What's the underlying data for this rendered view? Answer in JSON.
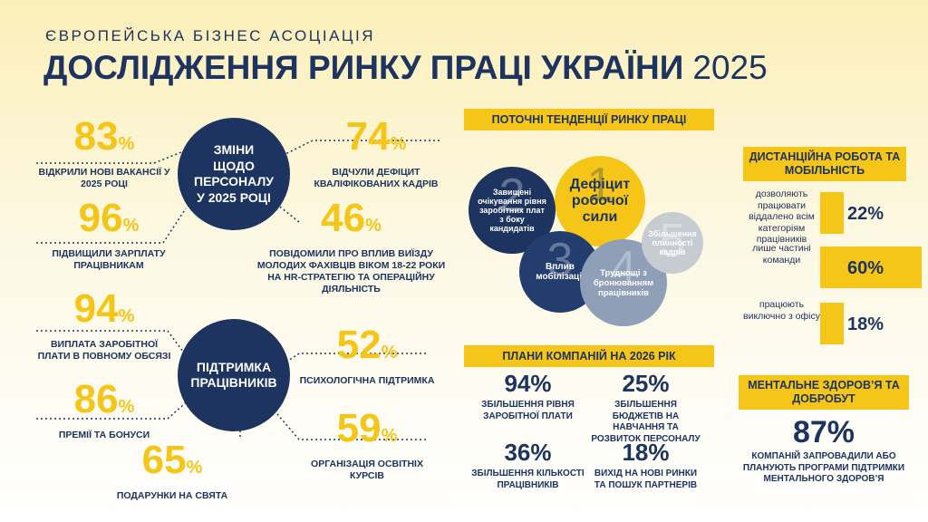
{
  "header": {
    "org": "ЄВРОПЕЙСЬКА БІЗНЕС АСОЦІАЦІЯ",
    "title": "ДОСЛІДЖЕННЯ РИНКУ ПРАЦІ УКРАЇНИ",
    "year": "2025"
  },
  "staffing": {
    "hub": "ЗМІНИ ЩОДО ПЕРСОНАЛУ У 2025 РОЦІ",
    "items": [
      {
        "value": "83",
        "unit": "%",
        "label": "ВІДКРИЛИ НОВІ ВАКАНСІЇ У 2025 РОЦІ"
      },
      {
        "value": "74",
        "unit": "%",
        "label": "ВІДЧУЛИ ДЕФІЦИТ КВАЛІФІКОВАНИХ КАДРІВ"
      },
      {
        "value": "96",
        "unit": "%",
        "label": "ПІДВИЩИЛИ ЗАРПЛАТУ ПРАЦІВНИКАМ"
      },
      {
        "value": "46",
        "unit": "%",
        "label": "ПОВІДОМИЛИ ПРО ВПЛИВ ВИЇЗДУ МОЛОДИХ ФАХІВЦІВ ВІКОМ 18-22 РОКИ НА HR-СТРАТЕГІЮ ТА ОПЕРАЦІЙНУ ДІЯЛЬНІСТЬ"
      }
    ]
  },
  "support": {
    "hub": "ПІДТРИМКА ПРАЦІВНИКІВ",
    "items": [
      {
        "value": "94",
        "unit": "%",
        "label": "ВИПЛАТА ЗАРОБІТНОЇ ПЛАТИ В ПОВНОМУ ОБСЯЗІ"
      },
      {
        "value": "52",
        "unit": "%",
        "label": "ПСИХОЛОГІЧНА ПІДТРИМКА"
      },
      {
        "value": "86",
        "unit": "%",
        "label": "ПРЕМІЇ ТА БОНУСИ"
      },
      {
        "value": "59",
        "unit": "%",
        "label": "ОРГАНІЗАЦІЯ ОСВІТНІХ КУРСІВ"
      },
      {
        "value": "65",
        "unit": "%",
        "label": "ПОДАРУНКИ НА СВЯТА"
      }
    ]
  },
  "trends": {
    "title": "ПОТОЧНІ ТЕНДЕНЦІЇ РИНКУ ПРАЦІ",
    "bubbles": [
      {
        "rank": "1",
        "label": "Дефіцит робочої сили"
      },
      {
        "rank": "2",
        "label": "Завищені очікування рівня заробітних плат з боку кандидатів"
      },
      {
        "rank": "3",
        "label": "Вплив мобілізації"
      },
      {
        "rank": "4",
        "label": "Труднощі з бронюванням працівників"
      },
      {
        "rank": "5",
        "label": "Збільшення плинності кадрів"
      }
    ]
  },
  "plans": {
    "title": "ПЛАНИ КОМПАНІЙ НА 2026 РІК",
    "items": [
      {
        "value": "94%",
        "label": "ЗБІЛЬШЕННЯ РІВНЯ ЗАРОБІТНОЇ ПЛАТИ"
      },
      {
        "value": "25%",
        "label": "ЗБІЛЬШЕННЯ БЮДЖЕТІВ НА НАВЧАННЯ ТА РОЗВИТОК ПЕРСОНАЛУ"
      },
      {
        "value": "36%",
        "label": "ЗБІЛЬШЕННЯ КІЛЬКОСТІ ПРАЦІВНИКІВ"
      },
      {
        "value": "18%",
        "label": "ВИХІД НА НОВІ РИНКИ ТА ПОШУК ПАРТНЕРІВ"
      }
    ]
  },
  "remote": {
    "title": "ДИСТАНЦІЙНА РОБОТА ТА МОБІЛЬНІСТЬ",
    "items": [
      {
        "label": "дозволяють працювати віддалено всім категоріям працівників",
        "value": "22%"
      },
      {
        "label": "лише частині команди",
        "value": "60%"
      },
      {
        "label": "працюють виключно з офісу",
        "value": "18%"
      }
    ]
  },
  "mental": {
    "title": "МЕНТАЛЬНЕ ЗДОРОВ’Я ТА ДОБРОБУТ",
    "value": "87%",
    "label": "КОМПАНІЙ ЗАПРОВАДИЛИ АБО ПЛАНУЮТЬ ПРОГРАМИ ПІДТРИМКИ МЕНТАЛЬНОГО ЗДОРОВ’Я"
  }
}
